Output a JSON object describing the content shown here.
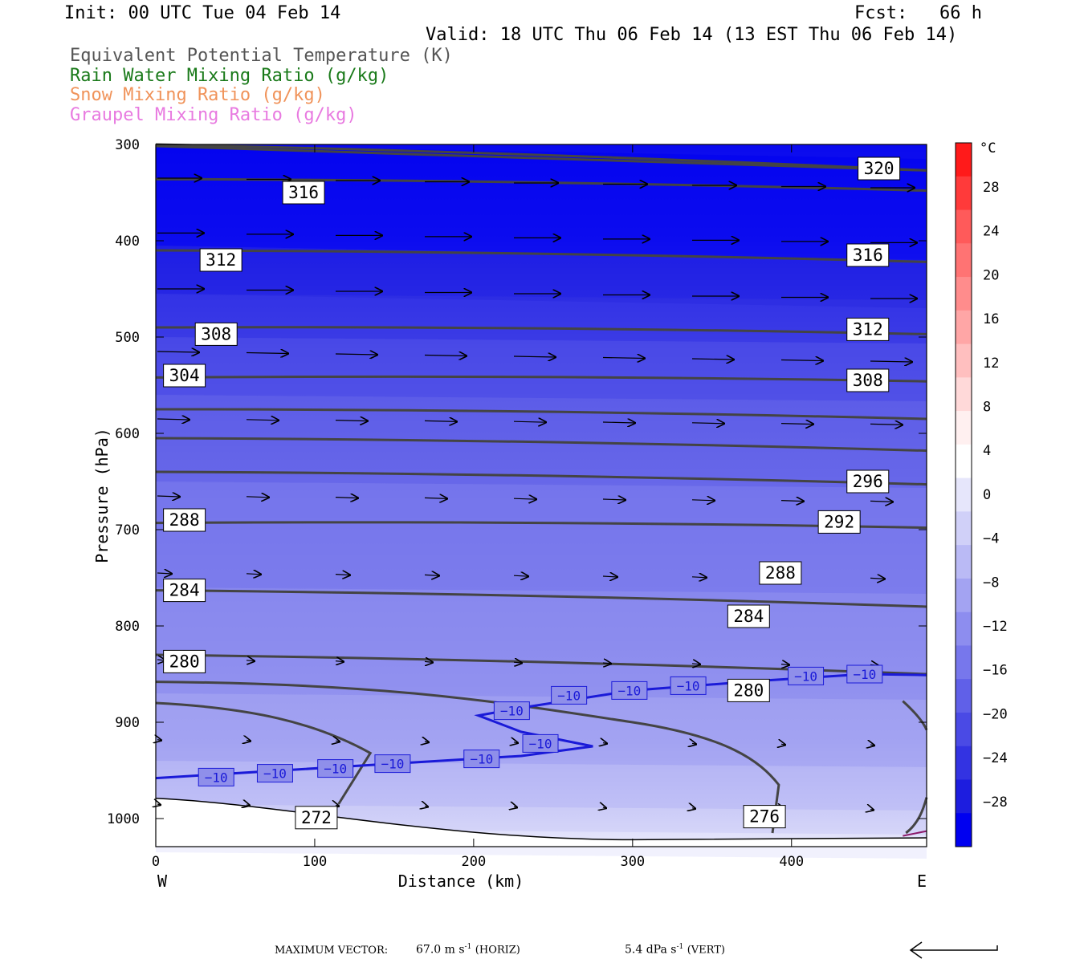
{
  "header": {
    "init": "Init: 00 UTC Tue 04 Feb 14",
    "fcst": "Fcst:   66 h",
    "valid": "Valid: 18 UTC Thu 06 Feb 14 (13 EST Thu 06 Feb 14)",
    "legend": [
      {
        "text": "Equivalent Potential Temperature (K)",
        "color": "#555555"
      },
      {
        "text": "Rain Water Mixing Ratio (g/kg)",
        "color": "#1a7a1a"
      },
      {
        "text": "Snow Mixing Ratio (g/kg)",
        "color": "#f0935a"
      },
      {
        "text": "Graupel Mixing Ratio (g/kg)",
        "color": "#e87ae0"
      }
    ]
  },
  "footer": {
    "max_vector_label": "MAXIMUM VECTOR:",
    "horiz": "67.0 m s",
    "horiz_unit": "(HORIZ)",
    "vert": "5.4 dPa s",
    "vert_unit": "(VERT)",
    "exponent": "-1"
  },
  "chart_data": {
    "type": "cross-section",
    "xlabel": "Distance (km)",
    "ylabel": "Pressure (hPa)",
    "x_range": [
      0,
      485
    ],
    "y_range": [
      300,
      1030
    ],
    "x_ticks": [
      0,
      100,
      200,
      300,
      400
    ],
    "y_ticks": [
      300,
      400,
      500,
      600,
      700,
      800,
      900,
      1000
    ],
    "x_end_labels": {
      "left": "W",
      "right": "E"
    },
    "fill_variable": "temperature",
    "colorbar": {
      "unit": "°C",
      "labels": [
        "28",
        "24",
        "20",
        "16",
        "12",
        "8",
        "4",
        "0",
        "−4",
        "−8",
        "−12",
        "−16",
        "−20",
        "−24",
        "−28"
      ],
      "colors": [
        "#ff1a1a",
        "#ff3a3a",
        "#ff5a5a",
        "#ff7373",
        "#ff8c8c",
        "#ffa6a6",
        "#ffbfbf",
        "#ffd9d9",
        "#fff0f0",
        "#ffffff",
        "#e6e6fb",
        "#d0d0f8",
        "#babaf5",
        "#a3a3f2",
        "#8d8def",
        "#7777ec",
        "#6060e8",
        "#4a4ae5",
        "#3333e2",
        "#1d1ddf",
        "#0000f0"
      ]
    },
    "theta_e_labels": [
      {
        "text": "320",
        "x": 455,
        "p": 325
      },
      {
        "text": "316",
        "x": 93,
        "p": 350
      },
      {
        "text": "316",
        "x": 448,
        "p": 415
      },
      {
        "text": "312",
        "x": 41,
        "p": 420
      },
      {
        "text": "312",
        "x": 448,
        "p": 492
      },
      {
        "text": "308",
        "x": 38,
        "p": 497
      },
      {
        "text": "308",
        "x": 448,
        "p": 545
      },
      {
        "text": "304",
        "x": 18,
        "p": 540
      },
      {
        "text": "296",
        "x": 448,
        "p": 650
      },
      {
        "text": "292",
        "x": 430,
        "p": 692
      },
      {
        "text": "288",
        "x": 18,
        "p": 690
      },
      {
        "text": "288",
        "x": 393,
        "p": 745
      },
      {
        "text": "284",
        "x": 18,
        "p": 763
      },
      {
        "text": "284",
        "x": 373,
        "p": 790
      },
      {
        "text": "280",
        "x": 18,
        "p": 837
      },
      {
        "text": "280",
        "x": 373,
        "p": 867
      },
      {
        "text": "276",
        "x": 383,
        "p": 998
      },
      {
        "text": "272",
        "x": 101,
        "p": 999
      }
    ],
    "isotherm_labels": [
      {
        "text": "−10",
        "x": 38,
        "p": 957
      },
      {
        "text": "−10",
        "x": 75,
        "p": 953
      },
      {
        "text": "−10",
        "x": 113,
        "p": 948
      },
      {
        "text": "−10",
        "x": 149,
        "p": 943
      },
      {
        "text": "−10",
        "x": 205,
        "p": 938
      },
      {
        "text": "−10",
        "x": 224,
        "p": 888
      },
      {
        "text": "−10",
        "x": 242,
        "p": 922
      },
      {
        "text": "−10",
        "x": 260,
        "p": 872
      },
      {
        "text": "−10",
        "x": 298,
        "p": 867
      },
      {
        "text": "−10",
        "x": 335,
        "p": 862
      },
      {
        "text": "−10",
        "x": 409,
        "p": 852
      },
      {
        "text": "−10",
        "x": 446,
        "p": 850
      }
    ]
  }
}
